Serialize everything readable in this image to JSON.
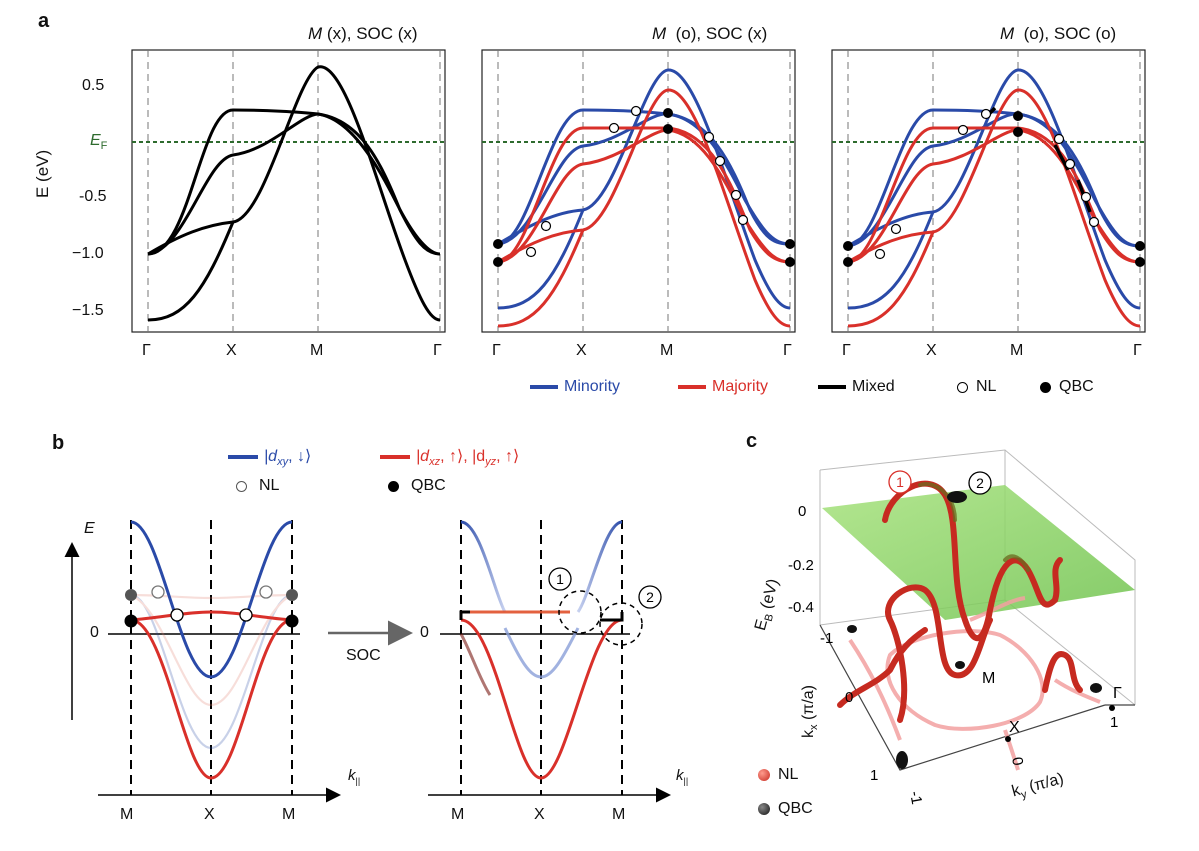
{
  "panel_a": {
    "letter": "a",
    "titles": [
      {
        "M": "M",
        "M_val": "(x)",
        "soc": "SOC (x)"
      },
      {
        "M": "M",
        "M_val": "(o)",
        "soc": "SOC (x)"
      },
      {
        "M": "M",
        "M_val": "(o)",
        "soc": "SOC (o)"
      }
    ],
    "y_axis_label": "E (eV)",
    "y_ticks": [
      "0.5",
      "-0.5",
      "−1.0",
      "−1.5"
    ],
    "ef_label": "E",
    "ef_sub": "F",
    "x_ticks": [
      "Γ",
      "X",
      "M",
      "Γ"
    ],
    "legend": [
      {
        "label": "Minority",
        "color": "#2a4aa8",
        "marker": "line"
      },
      {
        "label": "Majority",
        "color": "#d9302a",
        "marker": "line"
      },
      {
        "label": "Mixed",
        "color": "#000000",
        "marker": "line"
      },
      {
        "label": "NL",
        "color": "#000000",
        "marker": "open-circle"
      },
      {
        "label": "QBC",
        "color": "#000000",
        "marker": "filled-circle"
      }
    ]
  },
  "panel_b": {
    "letter": "b",
    "legend": [
      {
        "label": "|d",
        "sub": "xy",
        "spin": ", ↓⟩",
        "color": "#2a4aa8"
      },
      {
        "label": "|d",
        "sub": "xz",
        "spin": ", ↑⟩, |d",
        "sub2": "yz",
        "spin2": ", ↑⟩",
        "color": "#d9302a"
      }
    ],
    "nl_label": "NL",
    "qbc_label": "QBC",
    "e_label": "E",
    "zero": "0",
    "k_label": "k",
    "k_sub": "||",
    "x_ticks": [
      "M",
      "X",
      "M"
    ],
    "soc_label": "SOC",
    "circle1": "1",
    "circle2": "2"
  },
  "panel_c": {
    "letter": "c",
    "marker1": "1",
    "marker2": "2",
    "z_label": "E",
    "z_sub": "B",
    "z_unit": "(eV)",
    "z_ticks": [
      "0",
      "-0.2",
      "-0.4"
    ],
    "kx_label": "k",
    "kx_sub": "x",
    "kx_unit": "(π/a)",
    "kx_ticks": [
      "-1",
      "0",
      "1"
    ],
    "ky_label": "k",
    "ky_sub": "y",
    "ky_unit": "(π/a)",
    "ky_ticks": [
      "-1",
      "0",
      "1"
    ],
    "point_M": "M",
    "point_X": "X",
    "point_G": "Γ",
    "legend": [
      {
        "label": "NL",
        "color": "#d9302a"
      },
      {
        "label": "QBC",
        "color": "#111111"
      }
    ]
  },
  "colors": {
    "minority": "#2a4aa8",
    "majority": "#d9302a",
    "ef_line": "#2e6b2e",
    "plane": "#8fd66a"
  }
}
